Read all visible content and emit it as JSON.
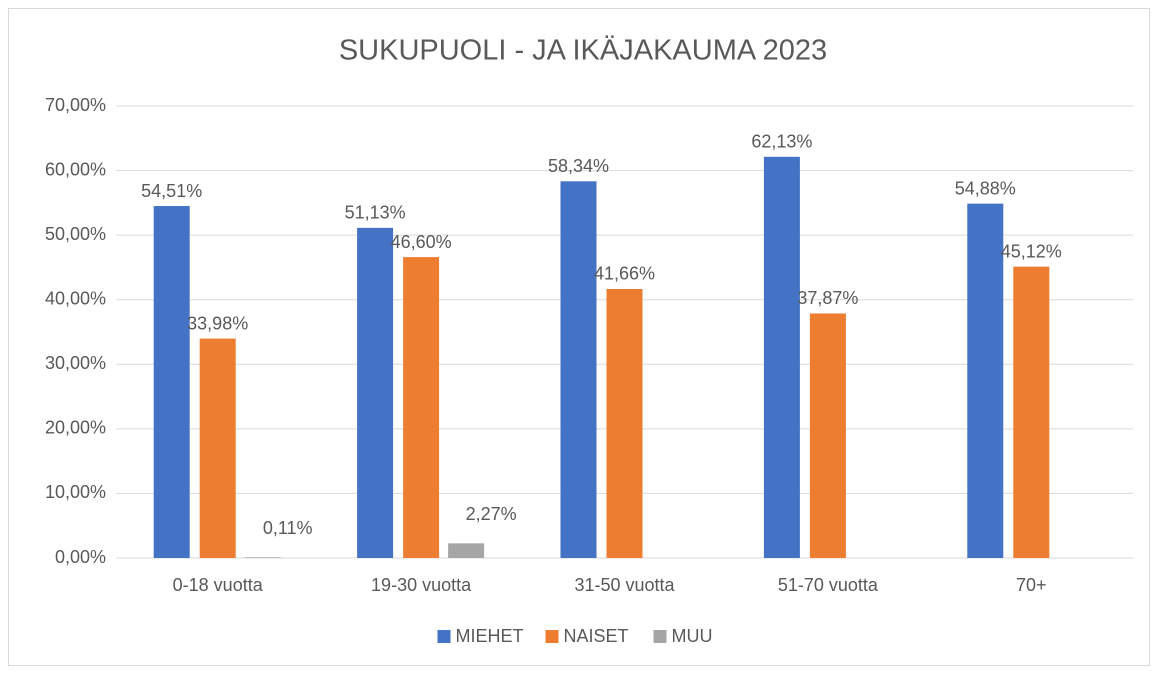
{
  "chart_data": {
    "type": "bar",
    "title": "SUKUPUOLI - JA IKÄJAKAUMA 2023",
    "categories": [
      "0-18 vuotta",
      "19-30 vuotta",
      "31-50 vuotta",
      "51-70 vuotta",
      "70+"
    ],
    "series": [
      {
        "name": "MIEHET",
        "color": "#4472c4",
        "values": [
          54.51,
          51.13,
          58.34,
          62.13,
          54.88
        ],
        "value_labels": [
          "54,51%",
          "51,13%",
          "58,34%",
          "62,13%",
          "54,88%"
        ]
      },
      {
        "name": "NAISET",
        "color": "#ed7d31",
        "values": [
          33.98,
          46.6,
          41.66,
          37.87,
          45.12
        ],
        "value_labels": [
          "33,98%",
          "46,60%",
          "41,66%",
          "37,87%",
          "45,12%"
        ]
      },
      {
        "name": "MUU",
        "color": "#a5a5a5",
        "values": [
          0.11,
          2.27,
          null,
          null,
          null
        ],
        "value_labels": [
          "0,11%",
          "2,27%",
          null,
          null,
          null
        ]
      }
    ],
    "ylim": [
      0,
      70
    ],
    "yticks": [
      {
        "value": 0,
        "label": "0,00%"
      },
      {
        "value": 10,
        "label": "10,00%"
      },
      {
        "value": 20,
        "label": "20,00%"
      },
      {
        "value": 30,
        "label": "30,00%"
      },
      {
        "value": 40,
        "label": "40,00%"
      },
      {
        "value": 50,
        "label": "50,00%"
      },
      {
        "value": 60,
        "label": "60,00%"
      },
      {
        "value": 70,
        "label": "70,00%"
      }
    ],
    "grid": true,
    "legend": "bottom"
  }
}
